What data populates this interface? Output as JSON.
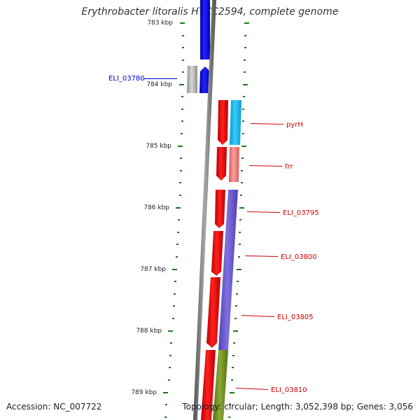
{
  "title": "Erythrobacter litoralis HTCC2594, complete genome",
  "ruler": {
    "labels": [
      "783 kbp",
      "784 kbp",
      "785 kbp",
      "786 kbp",
      "787 kbp",
      "788 kbp",
      "789 kbp"
    ]
  },
  "genes": [
    {
      "id": "ELI_03780",
      "strand": "reverse",
      "label_color": "#0000cc"
    },
    {
      "id": "pyrH",
      "strand": "forward",
      "label_color": "#cc0000"
    },
    {
      "id": "frr",
      "strand": "forward",
      "label_color": "#cc0000"
    },
    {
      "id": "ELI_03795",
      "strand": "forward",
      "label_color": "#cc0000"
    },
    {
      "id": "ELI_03800",
      "strand": "forward",
      "label_color": "#cc0000"
    },
    {
      "id": "ELI_03805",
      "strand": "forward",
      "label_color": "#cc0000"
    },
    {
      "id": "ELI_03810",
      "strand": "forward",
      "label_color": "#cc0000"
    }
  ],
  "colors": {
    "reverse_cds": "#0000dd",
    "forward_cds": "#ee0000",
    "tick": "#1a7a1a",
    "backbone": "#808080",
    "cog_cyan": "#22bbee",
    "cog_pink": "#ee8080",
    "cog_purple": "#6a5acd",
    "cog_olive": "#6b8e23",
    "cog_gray": "#b0b0b0"
  },
  "footer": {
    "accession": "Accession: NC_007722",
    "summary": "Topology: circular; Length: 3,052,398 bp; Genes: 3,056"
  }
}
